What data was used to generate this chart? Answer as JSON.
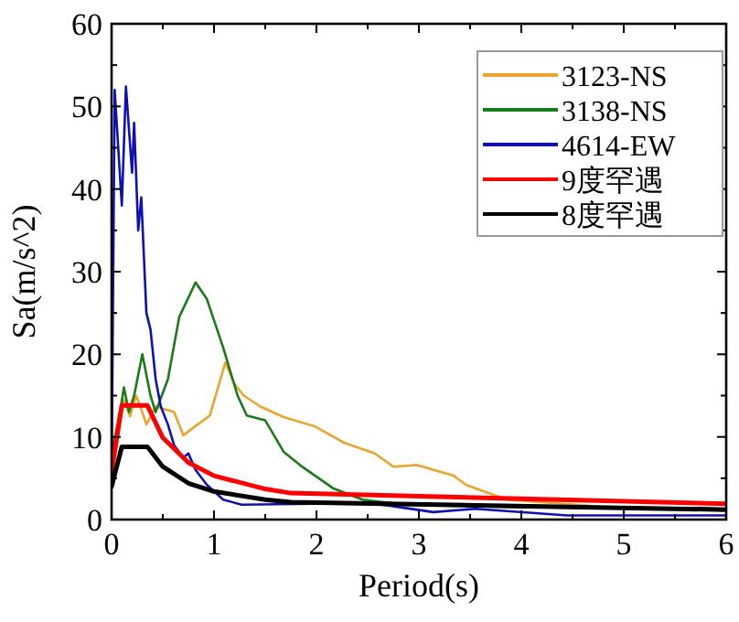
{
  "chart_data": {
    "type": "line",
    "xlabel": "Period(s)",
    "ylabel": "Sa(m/s^2)",
    "xlim": [
      0,
      6
    ],
    "xticks": [
      0,
      1,
      2,
      3,
      4,
      5,
      6
    ],
    "ylim": [
      0,
      60
    ],
    "yticks": [
      0,
      10,
      20,
      30,
      40,
      50,
      60
    ],
    "grid": false,
    "legend": "top right",
    "marker": "none",
    "line_style": "solid",
    "series": [
      {
        "name": "3123-NS",
        "color": "#e8a530",
        "x": [
          0,
          0.07,
          0.12,
          0.18,
          0.24,
          0.3,
          0.34,
          0.43,
          0.61,
          0.7,
          0.84,
          0.96,
          1.11,
          1.2,
          1.29,
          1.45,
          1.68,
          1.98,
          2.27,
          2.57,
          2.75,
          2.98,
          3.34,
          3.46,
          3.55,
          3.86,
          4.86,
          6
        ],
        "values": [
          8,
          12.6,
          14.5,
          12.5,
          15,
          13,
          11.5,
          13.7,
          13,
          10.2,
          11.5,
          12.6,
          19,
          16.4,
          15,
          13.7,
          12.4,
          11.3,
          9.3,
          8,
          6.4,
          6.6,
          5.3,
          4.2,
          3.8,
          2.4,
          1.5,
          1.3
        ]
      },
      {
        "name": "3138-NS",
        "color": "#1a7a1a",
        "x": [
          0,
          0.07,
          0.12,
          0.17,
          0.22,
          0.3,
          0.38,
          0.43,
          0.55,
          0.66,
          0.82,
          0.93,
          1.09,
          1.23,
          1.32,
          1.5,
          1.68,
          1.86,
          2.16,
          2.45,
          2.87,
          4,
          6
        ],
        "values": [
          8,
          12,
          16,
          13,
          15,
          20,
          15,
          13,
          17,
          24.5,
          28.7,
          26.7,
          20.8,
          15,
          12.6,
          12,
          8.2,
          6.4,
          3.8,
          2.4,
          1.8,
          1.5,
          1.3
        ]
      },
      {
        "name": "4614-EW",
        "color": "#1010b0",
        "x": [
          0,
          0.03,
          0.1,
          0.14,
          0.2,
          0.22,
          0.26,
          0.29,
          0.34,
          0.38,
          0.43,
          0.48,
          0.55,
          0.61,
          0.7,
          0.75,
          0.82,
          0.93,
          1.09,
          1.27,
          2.5,
          2.7,
          3.14,
          3.55,
          4.45,
          6
        ],
        "values": [
          5,
          52,
          38,
          52.4,
          42,
          48,
          35,
          39,
          25,
          23,
          17,
          13.7,
          11.5,
          9,
          7.5,
          8,
          6,
          4.2,
          2.4,
          1.8,
          2,
          1.7,
          0.9,
          1.3,
          0.5,
          0.5
        ]
      },
      {
        "name": "9度罕遇",
        "color": "#ff0000",
        "x": [
          0,
          0.1,
          0.35,
          0.5,
          0.75,
          1,
          1.5,
          1.75,
          6
        ],
        "values": [
          5.8,
          13.8,
          13.8,
          9.9,
          6.9,
          5.3,
          3.7,
          3.2,
          1.9
        ]
      },
      {
        "name": "8度罕遇",
        "color": "#000000",
        "x": [
          0,
          0.1,
          0.35,
          0.5,
          0.75,
          1,
          1.5,
          1.75,
          6
        ],
        "values": [
          4,
          8.8,
          8.8,
          6.4,
          4.4,
          3.4,
          2.4,
          2.1,
          1.2
        ]
      }
    ]
  }
}
